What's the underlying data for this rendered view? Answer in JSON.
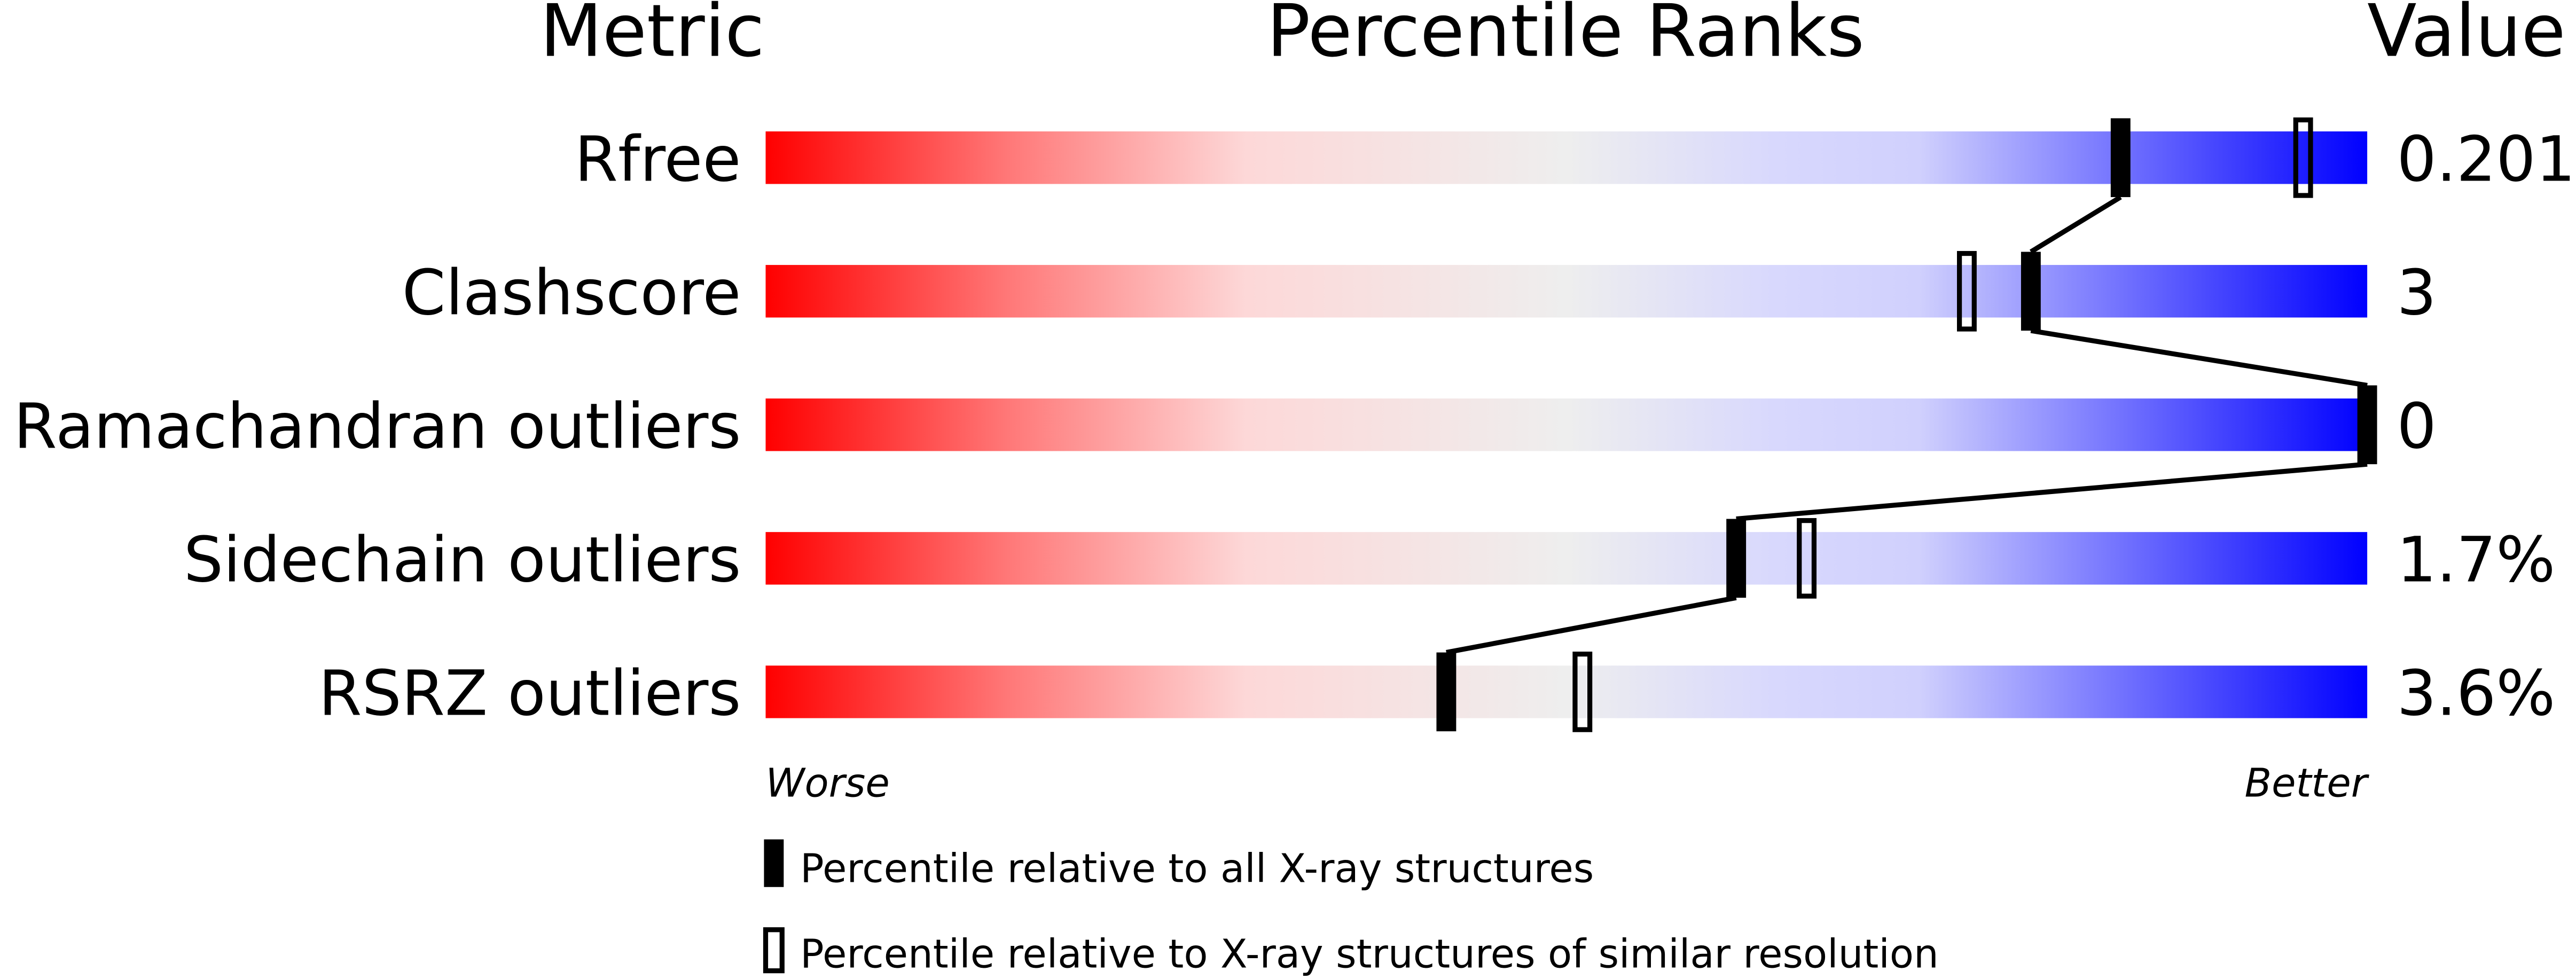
{
  "chart_data": {
    "type": "percentile-bar",
    "headers": {
      "metric": "Metric",
      "ranks": "Percentile Ranks",
      "value": "Value"
    },
    "axis": {
      "left_label": "Worse",
      "right_label": "Better",
      "range": [
        0,
        100
      ]
    },
    "rows": [
      {
        "metric": "Rfree",
        "value": "0.201",
        "percentile_all": 84.6,
        "percentile_similar": 96
      },
      {
        "metric": "Clashscore",
        "value": "3",
        "percentile_all": 79,
        "percentile_similar": 75
      },
      {
        "metric": "Ramachandran outliers",
        "value": "0",
        "percentile_all": 100,
        "percentile_similar": null
      },
      {
        "metric": "Sidechain outliers",
        "value": "1.7%",
        "percentile_all": 60.6,
        "percentile_similar": 65
      },
      {
        "metric": "RSRZ outliers",
        "value": "3.6%",
        "percentile_all": 42.5,
        "percentile_similar": 51
      }
    ],
    "legend": [
      {
        "marker": "filled",
        "label": "Percentile relative to all X-ray structures"
      },
      {
        "marker": "open",
        "label": "Percentile relative to X-ray structures of similar resolution"
      }
    ],
    "colors": {
      "worse": "#ff0000",
      "middle": "#eeeeee",
      "better": "#0000ff",
      "marker": "#000000"
    }
  }
}
